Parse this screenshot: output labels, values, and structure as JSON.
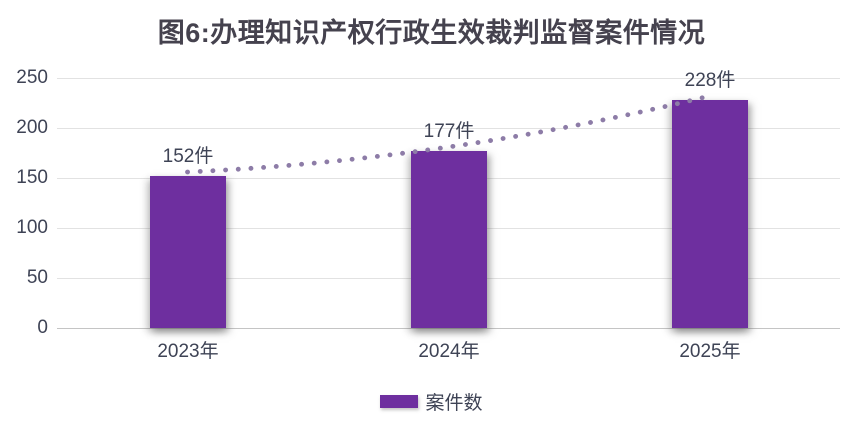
{
  "title": "图6:办理知识产权行政生效裁判监督案件情况",
  "legend": {
    "label": "案件数"
  },
  "chart_data": {
    "type": "bar",
    "title": "图6:办理知识产权行政生效裁判监督案件情况",
    "categories": [
      "2023年",
      "2024年",
      "2025年"
    ],
    "series": [
      {
        "name": "案件数",
        "values": [
          152,
          177,
          228
        ]
      }
    ],
    "data_labels": [
      "152件",
      "177件",
      "228件"
    ],
    "unit": "件",
    "ylim": [
      0,
      250
    ],
    "y_ticks": [
      0,
      50,
      100,
      150,
      200,
      250
    ],
    "grid": true,
    "legend_position": "bottom",
    "trendline": {
      "style": "dotted",
      "shape": "curved-through-bar-tops"
    },
    "colors": {
      "bar": "#6e2f9f",
      "trend_dots": "#8d7ca7",
      "grid": "#e2e2e2",
      "axis": "#c4c4c4",
      "text": "#3e4355",
      "title": "#45424e"
    }
  }
}
